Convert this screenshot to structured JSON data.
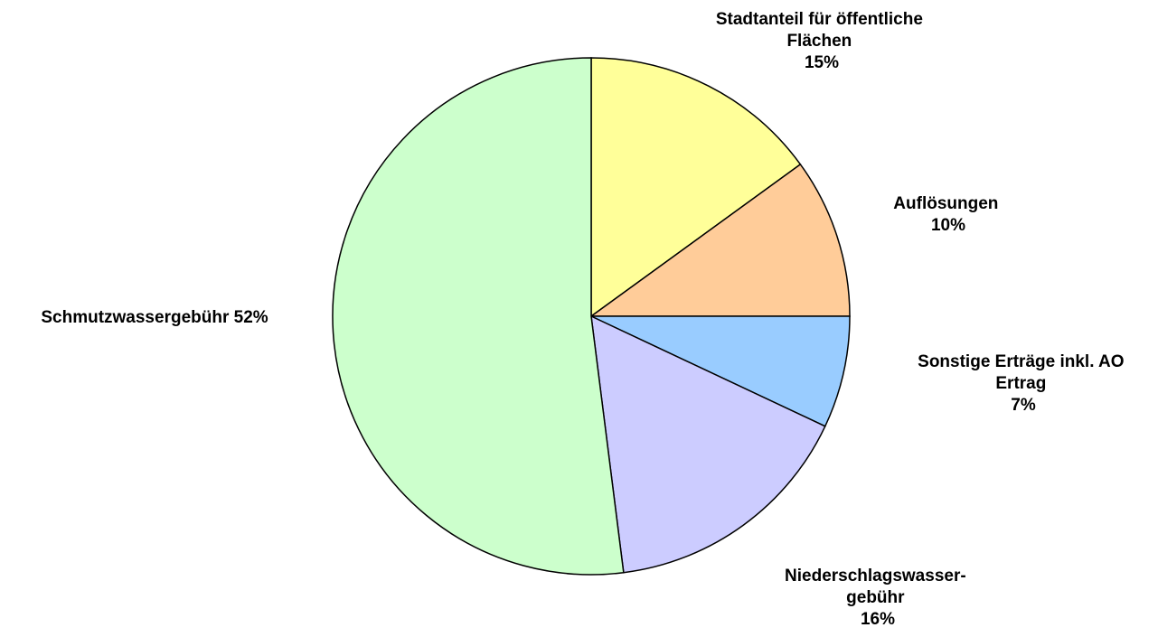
{
  "chart_data": {
    "type": "pie",
    "title": "",
    "start": "top",
    "direction": "clockwise",
    "slices": [
      {
        "label_lines": [
          "Stadtanteil für öffentliche",
          "Flächen",
          "15%"
        ],
        "value": 15,
        "color": "#ffff99"
      },
      {
        "label_lines": [
          "Auflösungen",
          "10%"
        ],
        "value": 10,
        "color": "#ffcc99"
      },
      {
        "label_lines": [
          "Sonstige Erträge inkl. AO",
          "Ertrag",
          "7%"
        ],
        "value": 7,
        "color": "#99ccff"
      },
      {
        "label_lines": [
          "Niederschlagswasser-",
          "gebühr",
          "16%"
        ],
        "value": 16,
        "color": "#ccccff"
      },
      {
        "label_lines": [
          "Schmutzwassergebühr 52%"
        ],
        "value": 52,
        "color": "#ccffcc"
      }
    ]
  }
}
